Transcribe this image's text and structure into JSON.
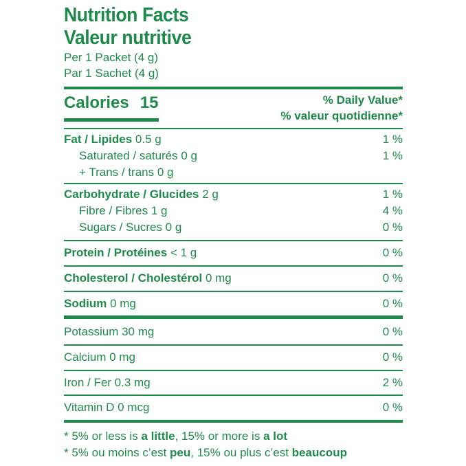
{
  "title_en": "Nutrition Facts",
  "title_fr": "Valeur nutritive",
  "serving_en": "Per 1 Packet (4 g)",
  "serving_fr": "Par 1 Sachet (4 g)",
  "calories": {
    "label": "Calories",
    "value": "15"
  },
  "daily_value": {
    "en": "% Daily Value*",
    "fr": "% valeur quotidienne*"
  },
  "fat": {
    "label": "Fat / Lipides",
    "amount": "0.5 g",
    "pct": "1 %"
  },
  "saturated": {
    "label": "Saturated / saturés 0 g",
    "pct": "1 %"
  },
  "trans": {
    "label": "+ Trans / trans 0 g"
  },
  "carbohydrate": {
    "label": "Carbohydrate / Glucides",
    "amount": "2 g",
    "pct": "1 %"
  },
  "fibre": {
    "label": "Fibre / Fibres 1 g",
    "pct": "4 %"
  },
  "sugars": {
    "label": "Sugars / Sucres 0 g",
    "pct": "0 %"
  },
  "protein": {
    "label": "Protein / Protéines",
    "amount": "< 1 g",
    "pct": "0 %"
  },
  "cholesterol": {
    "label": "Cholesterol / Cholestérol",
    "amount": "0 mg",
    "pct": "0 %"
  },
  "sodium": {
    "label": "Sodium",
    "amount": "0 mg",
    "pct": "0 %"
  },
  "potassium": {
    "label": "Potassium 30 mg",
    "pct": "0 %"
  },
  "calcium": {
    "label": "Calcium 0 mg",
    "pct": "0 %"
  },
  "iron": {
    "label": "Iron / Fer 0.3 mg",
    "pct": "2 %"
  },
  "vitamin_d": {
    "label": "Vitamin D 0 mcg",
    "pct": "0 %"
  },
  "footnote_en": {
    "a": "* 5% or less is ",
    "b": "a little",
    "c": ", 15% or more is ",
    "d": "a lot"
  },
  "footnote_fr": {
    "a": "* 5% ou moins c’est ",
    "b": "peu",
    "c": ", 15% ou plus c’est ",
    "d": "beaucoup"
  },
  "accent_color": "#1e8a4a"
}
